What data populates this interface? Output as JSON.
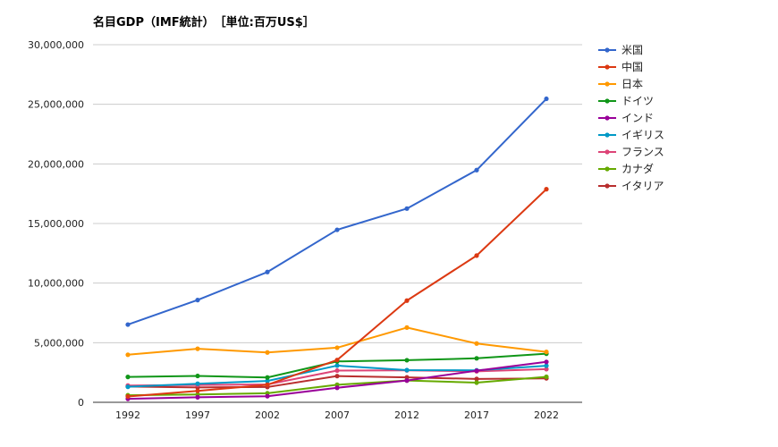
{
  "chart_data": {
    "type": "line",
    "title": "名目GDP（IMF統計）　［単位:百万US$］",
    "xlabel": "",
    "ylabel": "",
    "x": [
      "1992",
      "1997",
      "2002",
      "2007",
      "2012",
      "2017",
      "2022"
    ],
    "ylim": [
      0,
      30000000
    ],
    "y_ticks": [
      0,
      5000000,
      10000000,
      15000000,
      20000000,
      25000000,
      30000000
    ],
    "y_tick_labels": [
      "0",
      "5,000,000",
      "10,000,000",
      "15,000,000",
      "20,000,000",
      "25,000,000",
      "30,000,000"
    ],
    "grid": true,
    "legend_position": "right",
    "series": [
      {
        "name": "米国",
        "color": "#3366cc",
        "values": [
          6520000,
          8580000,
          10930000,
          14470000,
          16250000,
          19480000,
          25460000
        ]
      },
      {
        "name": "中国",
        "color": "#dc3912",
        "values": [
          490000,
          960000,
          1470000,
          3550000,
          8530000,
          12310000,
          17880000
        ]
      },
      {
        "name": "日本",
        "color": "#ff9900",
        "values": [
          3990000,
          4490000,
          4180000,
          4580000,
          6270000,
          4930000,
          4230000
        ]
      },
      {
        "name": "ドイツ",
        "color": "#109618",
        "values": [
          2130000,
          2210000,
          2080000,
          3430000,
          3530000,
          3690000,
          4080000
        ]
      },
      {
        "name": "インド",
        "color": "#990099",
        "values": [
          290000,
          420000,
          510000,
          1220000,
          1830000,
          2650000,
          3390000
        ]
      },
      {
        "name": "イギリス",
        "color": "#0099c6",
        "values": [
          1300000,
          1560000,
          1790000,
          3080000,
          2700000,
          2680000,
          3070000
        ]
      },
      {
        "name": "フランス",
        "color": "#dd4477",
        "values": [
          1410000,
          1450000,
          1500000,
          2660000,
          2680000,
          2600000,
          2780000
        ]
      },
      {
        "name": "カナダ",
        "color": "#66aa00",
        "values": [
          590000,
          660000,
          760000,
          1470000,
          1830000,
          1650000,
          2140000
        ]
      },
      {
        "name": "イタリア",
        "color": "#b82e2e",
        "values": [
          1320000,
          1250000,
          1280000,
          2200000,
          2090000,
          1960000,
          2010000
        ]
      }
    ]
  }
}
